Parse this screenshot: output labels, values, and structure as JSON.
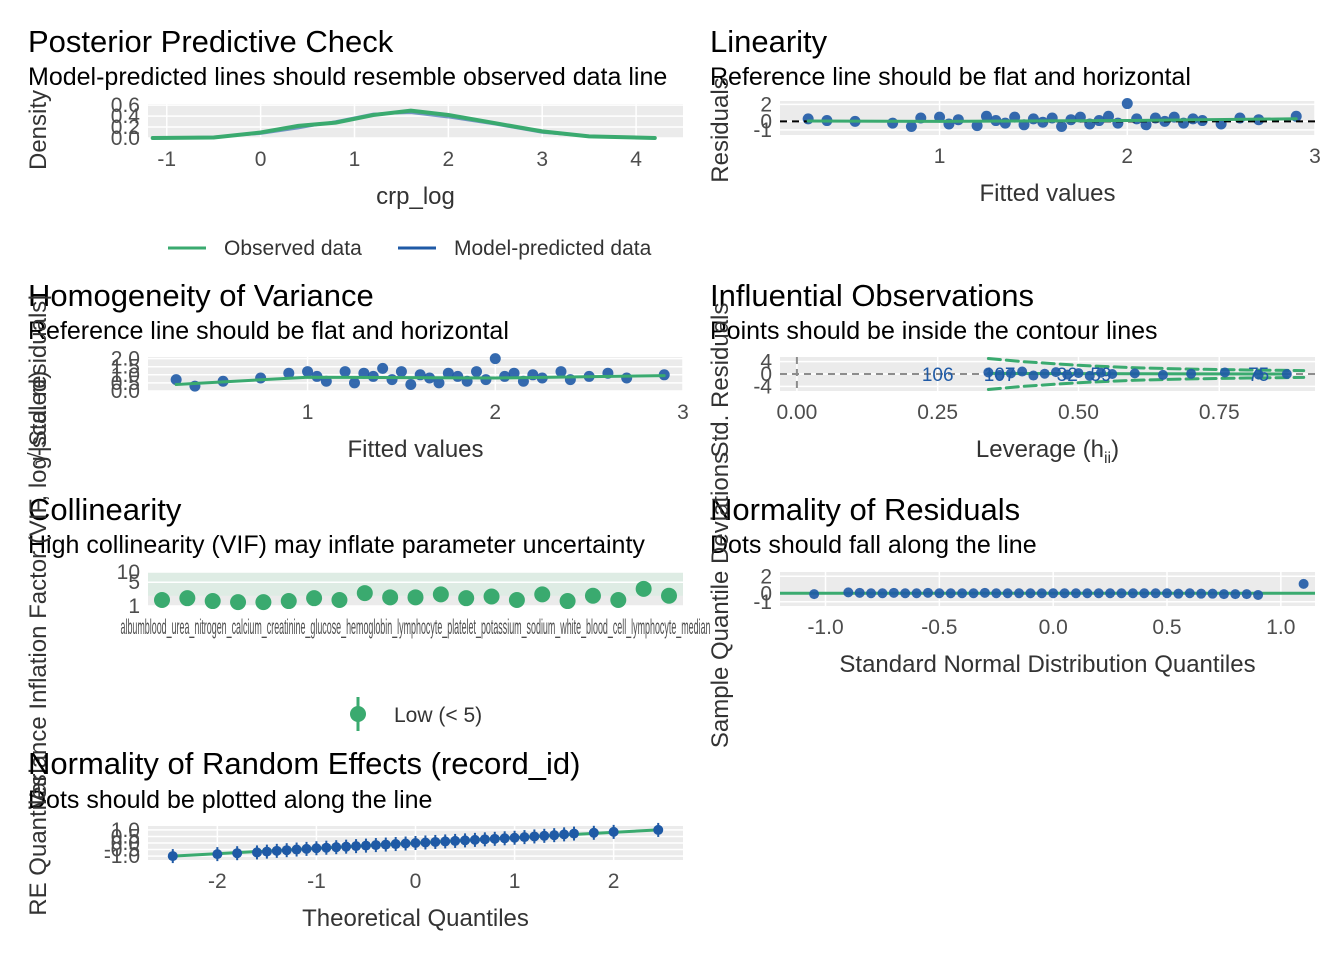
{
  "colors": {
    "green": "#3aaa6f",
    "blue": "#1f5aa6",
    "panel": "#ebebeb",
    "grid": "#ffffff"
  },
  "chart_data": [
    {
      "id": "ppc",
      "type": "line",
      "title": "Posterior Predictive Check",
      "subtitle": "Model-predicted lines should resemble observed data line",
      "xlabel": "crp_log",
      "ylabel": "Density",
      "xlim": [
        -1.2,
        4.5
      ],
      "ylim": [
        0.0,
        0.62
      ],
      "xticks": [
        -1,
        0,
        1,
        2,
        3,
        4
      ],
      "yticks": [
        0.0,
        0.2,
        0.4,
        0.6
      ],
      "legend": {
        "placement": "bottom",
        "entries": [
          "Observed data",
          "Model-predicted data"
        ]
      },
      "series": [
        {
          "name": "Observed data",
          "x": [
            -1.15,
            -0.5,
            0.0,
            0.4,
            0.8,
            1.2,
            1.6,
            2.0,
            2.5,
            3.0,
            3.5,
            4.2
          ],
          "y": [
            0.0,
            0.01,
            0.1,
            0.22,
            0.28,
            0.42,
            0.5,
            0.42,
            0.27,
            0.12,
            0.03,
            0.0
          ]
        },
        {
          "name": "Model-predicted data",
          "x": [
            -1.15,
            -0.5,
            0.0,
            0.4,
            0.8,
            1.2,
            1.6,
            2.0,
            2.5,
            3.0,
            3.5,
            4.2
          ],
          "y": [
            0.0,
            0.02,
            0.08,
            0.18,
            0.3,
            0.44,
            0.46,
            0.38,
            0.25,
            0.1,
            0.03,
            0.0
          ]
        }
      ]
    },
    {
      "id": "linearity",
      "type": "scatter",
      "title": "Linearity",
      "subtitle": "Reference line should be flat and horizontal",
      "xlabel": "Fitted values",
      "ylabel": "Residuals",
      "xlim": [
        0.15,
        3.0
      ],
      "ylim": [
        -1.6,
        2.4
      ],
      "xticks": [
        1,
        2,
        3
      ],
      "yticks": [
        -1,
        0,
        2
      ],
      "points": {
        "x": [
          0.3,
          0.4,
          0.55,
          0.75,
          0.85,
          0.9,
          1.0,
          1.05,
          1.1,
          1.2,
          1.25,
          1.3,
          1.35,
          1.4,
          1.45,
          1.5,
          1.55,
          1.6,
          1.65,
          1.7,
          1.75,
          1.8,
          1.85,
          1.9,
          1.95,
          2.0,
          2.05,
          2.1,
          2.15,
          2.2,
          2.25,
          2.3,
          2.35,
          2.4,
          2.5,
          2.6,
          2.7,
          2.9
        ],
        "y": [
          0.3,
          0.1,
          0.0,
          -0.2,
          -0.6,
          0.4,
          0.5,
          -0.3,
          0.2,
          -0.5,
          0.6,
          0.1,
          -0.2,
          0.5,
          -0.4,
          0.3,
          -0.1,
          0.4,
          -0.6,
          0.2,
          0.5,
          -0.3,
          0.1,
          0.6,
          -0.2,
          2.1,
          0.3,
          -0.4,
          0.4,
          0.0,
          0.5,
          -0.2,
          0.3,
          0.1,
          -0.3,
          0.4,
          0.2,
          0.6
        ]
      },
      "smooth": {
        "x": [
          0.3,
          1.0,
          2.0,
          2.9
        ],
        "y": [
          0.05,
          0.0,
          0.1,
          0.3
        ]
      },
      "refline": 0
    },
    {
      "id": "homogeneity",
      "type": "scatter",
      "title": "Homogeneity of Variance",
      "subtitle": "Reference line should be flat and horizontal",
      "xlabel": "Fitted values",
      "ylabel": "√|Std. residuals|",
      "xlim": [
        0.15,
        3.0
      ],
      "ylim": [
        0.0,
        2.1
      ],
      "xticks": [
        1,
        2,
        3
      ],
      "yticks": [
        0.0,
        0.5,
        1.0,
        1.5,
        2.0
      ],
      "points": {
        "x": [
          0.3,
          0.4,
          0.55,
          0.75,
          0.9,
          1.0,
          1.05,
          1.1,
          1.2,
          1.25,
          1.3,
          1.35,
          1.4,
          1.45,
          1.5,
          1.55,
          1.6,
          1.65,
          1.7,
          1.75,
          1.8,
          1.85,
          1.9,
          1.95,
          2.0,
          2.05,
          2.1,
          2.15,
          2.2,
          2.25,
          2.35,
          2.4,
          2.5,
          2.6,
          2.7,
          2.9
        ],
        "y": [
          0.7,
          0.3,
          0.6,
          0.8,
          1.1,
          1.2,
          0.9,
          0.6,
          1.2,
          0.5,
          1.1,
          0.9,
          1.4,
          0.7,
          1.2,
          0.4,
          1.0,
          0.8,
          0.5,
          1.1,
          0.9,
          0.6,
          1.2,
          0.7,
          2.0,
          0.9,
          1.1,
          0.6,
          1.0,
          0.8,
          1.2,
          0.7,
          0.9,
          1.1,
          0.8,
          1.0
        ]
      },
      "smooth": {
        "x": [
          0.3,
          1.0,
          2.0,
          2.9
        ],
        "y": [
          0.4,
          0.85,
          0.8,
          0.95
        ]
      }
    },
    {
      "id": "influential",
      "type": "scatter",
      "title": "Influential Observations",
      "subtitle": "Points should be inside the contour lines",
      "xlabel": "Leverage (h",
      "xlabel_sub": "ii",
      "xlabel_end": ")",
      "ylabel": "Std. Residuals",
      "xlim": [
        -0.03,
        0.92
      ],
      "ylim": [
        -5.5,
        5.5
      ],
      "xticks": [
        0.0,
        0.25,
        0.5,
        0.75
      ],
      "tick_labels": [
        "0.00",
        "0.25",
        "0.50",
        "0.75"
      ],
      "yticks": [
        -4,
        0,
        4
      ],
      "point_labels": [
        "106",
        "107",
        "32",
        "59",
        "75"
      ],
      "label_x": [
        0.25,
        0.36,
        0.48,
        0.54,
        0.82
      ],
      "points": {
        "x": [
          0.34,
          0.36,
          0.38,
          0.4,
          0.42,
          0.44,
          0.46,
          0.48,
          0.5,
          0.52,
          0.54,
          0.56,
          0.6,
          0.65,
          0.7,
          0.76,
          0.82,
          0.87
        ],
        "y": [
          0.5,
          -0.3,
          0.2,
          0.8,
          -0.5,
          0.1,
          0.6,
          -0.2,
          0.3,
          -0.6,
          0.4,
          0.0,
          0.2,
          -0.3,
          0.1,
          0.5,
          -0.2,
          0.0
        ]
      }
    },
    {
      "id": "collinearity",
      "type": "scatter",
      "title": "Collinearity",
      "subtitle": "High collinearity (VIF) may inflate parameter uncertainty",
      "ylabel": "Variance Inflation Factor (VIF, log-scaled)",
      "ylim": [
        1,
        10
      ],
      "yticks": [
        1,
        5,
        10
      ],
      "legend": {
        "placement": "bottom",
        "entries": [
          "Low (< 5)"
        ]
      },
      "category_label_text": "albumblood_urea_nitrogen_calcium_creatinine_glucose_hemoglobin_lymphocyte_platelet_potassium_sodium_white_blood_cell_lymphocyte_median",
      "values": [
        1.5,
        1.7,
        1.4,
        1.3,
        1.3,
        1.4,
        1.7,
        1.5,
        2.4,
        1.8,
        1.8,
        2.2,
        1.7,
        1.9,
        1.5,
        2.2,
        1.4,
        2.0,
        1.5,
        3.2,
        2.0
      ]
    },
    {
      "id": "normality-residuals",
      "type": "scatter",
      "title": "Normality of Residuals",
      "subtitle": "Dots should fall along the line",
      "xlabel": "Standard Normal Distribution Quantiles",
      "ylabel": "Sample Quantile Deviations",
      "xlim": [
        -1.2,
        1.15
      ],
      "ylim": [
        -1.5,
        2.5
      ],
      "xticks": [
        -1.0,
        -0.5,
        0.0,
        0.5,
        1.0
      ],
      "tick_labels": [
        "-1.0",
        "-0.5",
        "0.0",
        "0.5",
        "1.0"
      ],
      "yticks": [
        -1,
        0,
        2
      ],
      "points": {
        "x": [
          -1.05,
          -0.9,
          -0.85,
          -0.8,
          -0.75,
          -0.7,
          -0.65,
          -0.6,
          -0.55,
          -0.5,
          -0.45,
          -0.4,
          -0.35,
          -0.3,
          -0.25,
          -0.2,
          -0.15,
          -0.1,
          -0.05,
          0.0,
          0.05,
          0.1,
          0.15,
          0.2,
          0.25,
          0.3,
          0.35,
          0.4,
          0.45,
          0.5,
          0.55,
          0.6,
          0.65,
          0.7,
          0.75,
          0.8,
          0.85,
          0.9,
          1.1
        ],
        "y": [
          -0.1,
          0.1,
          0.05,
          0.0,
          0.0,
          0.05,
          0.0,
          0.0,
          0.05,
          0.0,
          0.0,
          0.0,
          0.0,
          0.05,
          0.0,
          0.0,
          0.0,
          0.0,
          0.0,
          0.0,
          0.0,
          0.0,
          0.0,
          0.0,
          0.0,
          0.0,
          0.0,
          0.0,
          0.0,
          0.0,
          -0.05,
          0.0,
          -0.05,
          -0.05,
          -0.1,
          -0.1,
          -0.1,
          -0.2,
          1.1
        ]
      }
    },
    {
      "id": "normality-re",
      "type": "scatter",
      "title": "Normality of Random Effects (record_id)",
      "subtitle": "Dots should be plotted along the line",
      "xlabel": "Theoretical Quantiles",
      "ylabel": "RE Quantiles",
      "xlim": [
        -2.7,
        2.7
      ],
      "ylim": [
        -1.3,
        1.3
      ],
      "xticks": [
        -2,
        -1,
        0,
        1,
        2
      ],
      "yticks": [
        -1.0,
        -0.5,
        0.0,
        0.5,
        1.0
      ],
      "tick_labels": [
        "-1.0",
        "-0.5",
        "0.0",
        "0.5",
        "1.0"
      ],
      "points": {
        "x": [
          -2.45,
          -2.0,
          -1.8,
          -1.6,
          -1.5,
          -1.4,
          -1.3,
          -1.2,
          -1.1,
          -1.0,
          -0.9,
          -0.8,
          -0.7,
          -0.6,
          -0.5,
          -0.4,
          -0.3,
          -0.2,
          -0.1,
          0.0,
          0.1,
          0.2,
          0.3,
          0.4,
          0.5,
          0.6,
          0.7,
          0.8,
          0.9,
          1.0,
          1.1,
          1.2,
          1.3,
          1.4,
          1.5,
          1.6,
          1.8,
          2.0,
          2.45
        ],
        "y": [
          -1.0,
          -0.85,
          -0.78,
          -0.72,
          -0.66,
          -0.6,
          -0.55,
          -0.5,
          -0.45,
          -0.4,
          -0.36,
          -0.32,
          -0.28,
          -0.24,
          -0.2,
          -0.16,
          -0.12,
          -0.08,
          -0.04,
          0.0,
          0.04,
          0.08,
          0.12,
          0.16,
          0.2,
          0.24,
          0.28,
          0.32,
          0.36,
          0.4,
          0.45,
          0.5,
          0.55,
          0.6,
          0.66,
          0.72,
          0.78,
          0.85,
          1.0
        ]
      }
    }
  ]
}
